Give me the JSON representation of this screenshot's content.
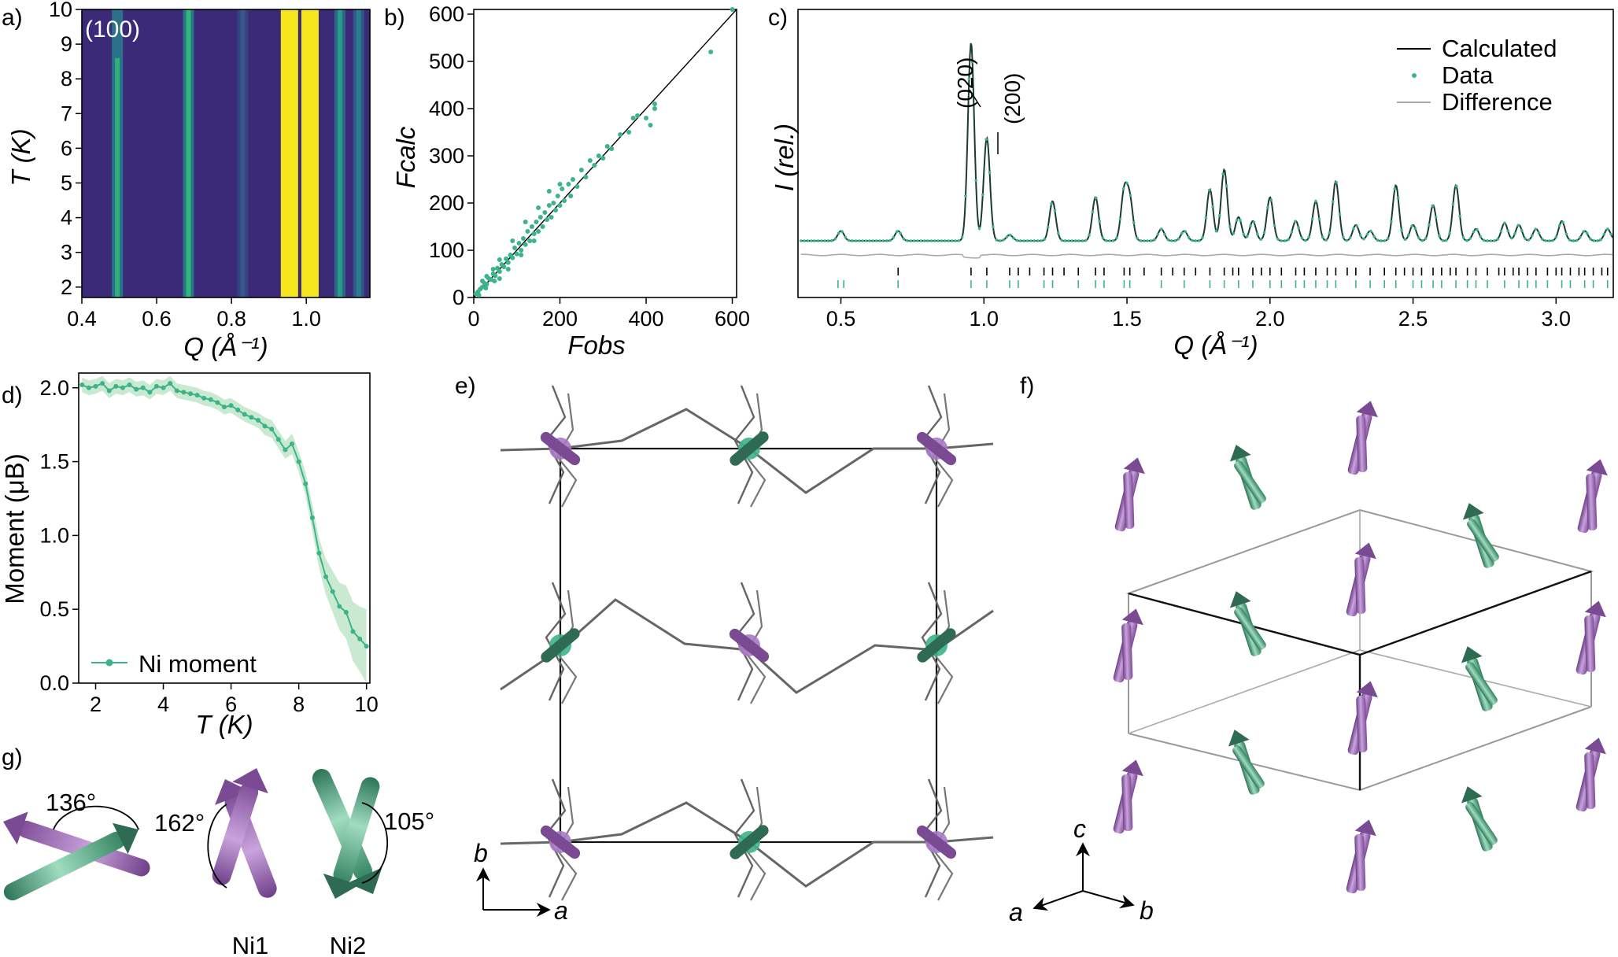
{
  "colors": {
    "green": "#3db38a",
    "darkgreen": "#2e6b52",
    "purple": "#a77bc4",
    "darkpurple": "#7a4b93",
    "viridis_bg": "#3b2a78",
    "viridis_bright": "#f5e61e",
    "fit_line": "#1a3d2c"
  },
  "panels": {
    "a": {
      "label": "a)",
      "annotation": "(100)",
      "xlabel": "Q (Å⁻¹)",
      "ylabel": "T (K)"
    },
    "b": {
      "label": "b)",
      "xlabel": "Fobs",
      "ylabel": "Fcalc"
    },
    "c": {
      "label": "c)",
      "xlabel": "Q (Å⁻¹)",
      "ylabel": "I (rel.)",
      "peak_labels": [
        "(020)",
        "(200)"
      ]
    },
    "d": {
      "label": "d)",
      "xlabel": "T (K)",
      "ylabel": "Moment (μB)"
    },
    "e": {
      "label": "e)",
      "axis_labels": [
        "b",
        "a"
      ]
    },
    "f": {
      "label": "f)",
      "axis_labels": [
        "c",
        "a",
        "b"
      ]
    },
    "g": {
      "label": "g)",
      "angles": [
        "136°",
        "162°",
        "105°"
      ],
      "site_labels": [
        "Ni1",
        "Ni2"
      ]
    }
  },
  "chart_data": [
    {
      "panel": "a",
      "type": "heatmap",
      "xlabel": "Q (Å⁻¹)",
      "ylabel": "T (K)",
      "xlim": [
        0.4,
        1.17
      ],
      "ylim": [
        1.7,
        10
      ],
      "xticks": [
        0.4,
        0.6,
        0.8,
        1.0
      ],
      "yticks": [
        2,
        3,
        4,
        5,
        6,
        7,
        8,
        9,
        10
      ],
      "annotation": "(100)",
      "bands": [
        {
          "q": 0.495,
          "intensity": 0.55
        },
        {
          "q": 0.685,
          "intensity": 0.6
        },
        {
          "q": 0.83,
          "intensity": 0.15
        },
        {
          "q": 0.955,
          "intensity": 1.0
        },
        {
          "q": 1.01,
          "intensity": 1.0
        },
        {
          "q": 1.09,
          "intensity": 0.45
        },
        {
          "q": 1.14,
          "intensity": 0.3
        }
      ]
    },
    {
      "panel": "b",
      "type": "scatter",
      "xlabel": "Fobs",
      "ylabel": "Fcalc",
      "xlim": [
        0,
        610
      ],
      "ylim": [
        0,
        610
      ],
      "xticks": [
        0,
        200,
        400,
        600
      ],
      "yticks": [
        0,
        100,
        200,
        300,
        400,
        500,
        600
      ],
      "points": [
        [
          5,
          8
        ],
        [
          10,
          12
        ],
        [
          15,
          18
        ],
        [
          20,
          22
        ],
        [
          25,
          30
        ],
        [
          30,
          28
        ],
        [
          35,
          40
        ],
        [
          40,
          38
        ],
        [
          45,
          50
        ],
        [
          50,
          46
        ],
        [
          55,
          62
        ],
        [
          60,
          55
        ],
        [
          65,
          70
        ],
        [
          70,
          65
        ],
        [
          75,
          82
        ],
        [
          80,
          74
        ],
        [
          85,
          90
        ],
        [
          90,
          84
        ],
        [
          95,
          105
        ],
        [
          100,
          92
        ],
        [
          105,
          115
        ],
        [
          110,
          100
        ],
        [
          115,
          125
        ],
        [
          120,
          112
        ],
        [
          125,
          140
        ],
        [
          130,
          120
        ],
        [
          135,
          150
        ],
        [
          140,
          135
        ],
        [
          145,
          160
        ],
        [
          150,
          140
        ],
        [
          155,
          170
        ],
        [
          160,
          150
        ],
        [
          165,
          180
        ],
        [
          170,
          165
        ],
        [
          175,
          195
        ],
        [
          180,
          170
        ],
        [
          185,
          200
        ],
        [
          190,
          185
        ],
        [
          195,
          215
        ],
        [
          200,
          195
        ],
        [
          205,
          230
        ],
        [
          210,
          205
        ],
        [
          220,
          240
        ],
        [
          225,
          215
        ],
        [
          230,
          250
        ],
        [
          240,
          235
        ],
        [
          250,
          270
        ],
        [
          260,
          255
        ],
        [
          270,
          290
        ],
        [
          280,
          280
        ],
        [
          290,
          300
        ],
        [
          300,
          295
        ],
        [
          310,
          320
        ],
        [
          320,
          315
        ],
        [
          340,
          345
        ],
        [
          360,
          350
        ],
        [
          380,
          385
        ],
        [
          400,
          380
        ],
        [
          420,
          410
        ],
        [
          370,
          380
        ],
        [
          410,
          365
        ],
        [
          420,
          400
        ],
        [
          550,
          520
        ],
        [
          600,
          610
        ],
        [
          30,
          45
        ],
        [
          60,
          80
        ],
        [
          90,
          120
        ],
        [
          120,
          160
        ],
        [
          150,
          190
        ],
        [
          175,
          225
        ],
        [
          200,
          240
        ],
        [
          60,
          40
        ],
        [
          80,
          60
        ],
        [
          110,
          90
        ],
        [
          140,
          120
        ],
        [
          20,
          35
        ],
        [
          45,
          60
        ],
        [
          12,
          5
        ],
        [
          28,
          20
        ],
        [
          48,
          35
        ]
      ],
      "fit_line": [
        [
          0,
          0
        ],
        [
          610,
          610
        ]
      ]
    },
    {
      "panel": "c",
      "type": "line",
      "xlabel": "Q (Å⁻¹)",
      "ylabel": "I (rel.)",
      "xlim": [
        0.35,
        3.2
      ],
      "xticks": [
        0.5,
        1.0,
        1.5,
        2.0,
        2.5,
        3.0
      ],
      "legend": [
        "Calculated",
        "Data",
        "Difference"
      ],
      "legend_position": "top-right",
      "peak_labels": [
        "(020)",
        "(200)"
      ],
      "peaks": [
        {
          "q": 0.5,
          "h": 0.05
        },
        {
          "q": 0.7,
          "h": 0.05
        },
        {
          "q": 0.955,
          "h": 1.0
        },
        {
          "q": 1.01,
          "h": 0.52
        },
        {
          "q": 1.09,
          "h": 0.03
        },
        {
          "q": 1.24,
          "h": 0.2
        },
        {
          "q": 1.39,
          "h": 0.22
        },
        {
          "q": 1.49,
          "h": 0.24
        },
        {
          "q": 1.51,
          "h": 0.2
        },
        {
          "q": 1.62,
          "h": 0.06
        },
        {
          "q": 1.7,
          "h": 0.05
        },
        {
          "q": 1.79,
          "h": 0.26
        },
        {
          "q": 1.84,
          "h": 0.36
        },
        {
          "q": 1.89,
          "h": 0.12
        },
        {
          "q": 1.94,
          "h": 0.1
        },
        {
          "q": 2.0,
          "h": 0.22
        },
        {
          "q": 2.09,
          "h": 0.1
        },
        {
          "q": 2.16,
          "h": 0.2
        },
        {
          "q": 2.23,
          "h": 0.3
        },
        {
          "q": 2.3,
          "h": 0.08
        },
        {
          "q": 2.35,
          "h": 0.05
        },
        {
          "q": 2.44,
          "h": 0.28
        },
        {
          "q": 2.5,
          "h": 0.08
        },
        {
          "q": 2.57,
          "h": 0.18
        },
        {
          "q": 2.65,
          "h": 0.28
        },
        {
          "q": 2.72,
          "h": 0.06
        },
        {
          "q": 2.82,
          "h": 0.09
        },
        {
          "q": 2.87,
          "h": 0.08
        },
        {
          "q": 2.93,
          "h": 0.06
        },
        {
          "q": 3.02,
          "h": 0.1
        },
        {
          "q": 3.1,
          "h": 0.05
        },
        {
          "q": 3.18,
          "h": 0.06
        }
      ],
      "tick_rows": [
        {
          "name": "row1",
          "q": [
            0.7,
            0.955,
            1.01,
            1.09,
            1.12,
            1.16,
            1.21,
            1.24,
            1.28,
            1.33,
            1.39,
            1.42,
            1.49,
            1.51,
            1.56,
            1.62,
            1.66,
            1.7,
            1.74,
            1.79,
            1.84,
            1.87,
            1.89,
            1.94,
            1.97,
            2.0,
            2.04,
            2.09,
            2.12,
            2.16,
            2.2,
            2.23,
            2.27,
            2.3,
            2.35,
            2.4,
            2.44,
            2.47,
            2.5,
            2.53,
            2.57,
            2.6,
            2.63,
            2.65,
            2.69,
            2.72,
            2.76,
            2.8,
            2.82,
            2.85,
            2.87,
            2.9,
            2.93,
            2.97,
            3.0,
            3.02,
            3.05,
            3.08,
            3.1,
            3.13,
            3.16,
            3.18
          ]
        },
        {
          "name": "row2",
          "q": [
            0.49,
            0.51,
            0.7,
            0.955,
            1.01,
            1.09,
            1.12,
            1.21,
            1.24,
            1.33,
            1.39,
            1.42,
            1.49,
            1.51,
            1.62,
            1.7,
            1.79,
            1.84,
            1.89,
            1.94,
            2.0,
            2.04,
            2.09,
            2.12,
            2.16,
            2.2,
            2.23,
            2.3,
            2.35,
            2.4,
            2.44,
            2.5,
            2.53,
            2.57,
            2.6,
            2.65,
            2.69,
            2.72,
            2.76,
            2.82,
            2.87,
            2.9,
            2.93,
            2.97,
            3.02,
            3.05,
            3.1,
            3.13,
            3.18
          ]
        }
      ]
    },
    {
      "panel": "d",
      "type": "line",
      "xlabel": "T (K)",
      "ylabel": "Moment (μB)",
      "xlim": [
        1.5,
        10.1
      ],
      "ylim": [
        0,
        2.1
      ],
      "xticks": [
        2,
        4,
        6,
        8,
        10
      ],
      "yticks": [
        0.0,
        0.5,
        1.0,
        1.5,
        2.0
      ],
      "legend": [
        "Ni moment"
      ],
      "legend_position": "bottom-left",
      "series": [
        {
          "name": "Ni moment",
          "x": [
            1.6,
            1.8,
            2.0,
            2.2,
            2.4,
            2.6,
            2.8,
            3.0,
            3.2,
            3.4,
            3.6,
            3.8,
            4.0,
            4.2,
            4.4,
            4.6,
            4.8,
            5.0,
            5.2,
            5.4,
            5.6,
            5.8,
            6.0,
            6.2,
            6.4,
            6.6,
            6.8,
            7.0,
            7.2,
            7.4,
            7.6,
            7.8,
            8.0,
            8.2,
            8.4,
            8.6,
            8.8,
            9.0,
            9.2,
            9.4,
            9.6,
            9.8,
            10.0
          ],
          "y": [
            2.02,
            2.0,
            2.01,
            2.03,
            1.98,
            2.01,
            2.0,
            2.02,
            1.99,
            2.0,
            1.97,
            2.01,
            2.0,
            2.03,
            1.98,
            1.97,
            1.96,
            1.95,
            1.93,
            1.92,
            1.9,
            1.87,
            1.88,
            1.85,
            1.82,
            1.8,
            1.78,
            1.74,
            1.72,
            1.65,
            1.58,
            1.62,
            1.5,
            1.35,
            1.12,
            0.88,
            0.72,
            0.62,
            0.52,
            0.48,
            0.35,
            0.3,
            0.25
          ],
          "err": [
            0.05,
            0.05,
            0.05,
            0.05,
            0.05,
            0.05,
            0.05,
            0.05,
            0.05,
            0.05,
            0.05,
            0.05,
            0.05,
            0.05,
            0.05,
            0.05,
            0.05,
            0.05,
            0.05,
            0.05,
            0.05,
            0.05,
            0.05,
            0.05,
            0.05,
            0.05,
            0.05,
            0.06,
            0.06,
            0.06,
            0.06,
            0.07,
            0.07,
            0.08,
            0.09,
            0.1,
            0.12,
            0.14,
            0.16,
            0.18,
            0.2,
            0.22,
            0.25
          ]
        }
      ]
    }
  ]
}
